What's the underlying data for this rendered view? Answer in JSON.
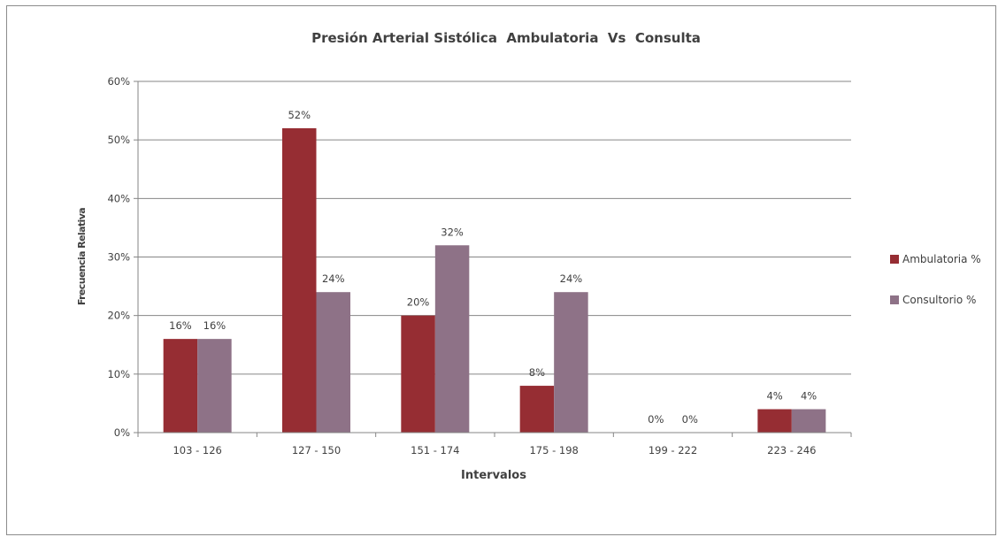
{
  "chart_data": {
    "type": "bar",
    "title": "Presión Arterial Sistólica  Ambulatoria  Vs  Consulta",
    "xlabel": "Intervalos",
    "ylabel": "Frecuencia Relativa",
    "categories": [
      "103 - 126",
      "127 - 150",
      "151 - 174",
      "175 - 198",
      "199 - 222",
      "223 - 246"
    ],
    "series": [
      {
        "name": "Ambulatoria %",
        "values": [
          16,
          52,
          20,
          8,
          0,
          4
        ],
        "color": "#962d33"
      },
      {
        "name": "Consultorio %",
        "values": [
          16,
          24,
          32,
          24,
          0,
          4
        ],
        "color": "#8e7287"
      }
    ],
    "ylim": [
      0,
      60
    ],
    "yticks": [
      0,
      10,
      20,
      30,
      40,
      50,
      60
    ],
    "tick_suffix": "%",
    "gridlines": true,
    "legend": "right",
    "data_labels": true
  }
}
